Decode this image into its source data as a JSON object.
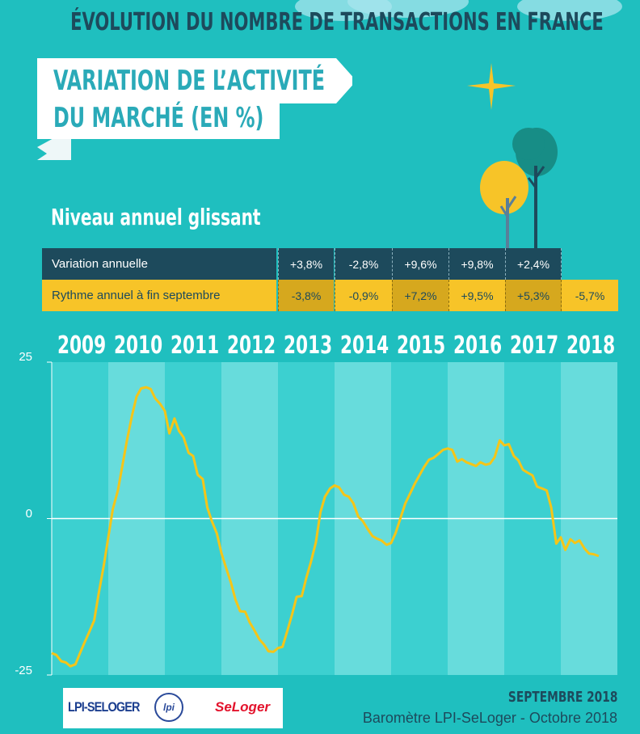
{
  "header": {
    "main_title": "ÉVOLUTION DU NOMBRE DE TRANSACTIONS EN FRANCE",
    "banner_line1": "VARIATION DE L’ACTIVITÉ",
    "banner_line2": "DU MARCHÉ (EN %)"
  },
  "section_title": "Niveau annuel glissant",
  "table": {
    "row1_label": "Variation annuelle",
    "row1_values": [
      "+3,8%",
      "-2,8%",
      "+9,6%",
      "+9,8%",
      "+2,4%"
    ],
    "row2_label": "Rythme annuel à fin septembre",
    "row2_values": [
      "-3,8%",
      "-0,9%",
      "+7,2%",
      "+9,5%",
      "+5,3%",
      "-5,7%"
    ]
  },
  "logos": {
    "lpi_seloger": "LPI-SELOGER",
    "lpi": "lpi",
    "seloger": "SeLoger"
  },
  "footer": {
    "date": "SEPTEMBRE 2018",
    "source": "Baromètre LPI-SeLoger - Octobre 2018"
  },
  "colors": {
    "background": "#1fbfbf",
    "dark_navy": "#1d4a5c",
    "yellow": "#f7c428",
    "line": "#f5c518",
    "band_light": "#67dcdc",
    "band_mid": "#3cd0d0"
  },
  "chart_data": {
    "type": "line",
    "title": "",
    "xlabel": "",
    "ylabel": "",
    "categories": [
      "2009",
      "2010",
      "2011",
      "2012",
      "2013",
      "2014",
      "2015",
      "2016",
      "2017",
      "2018"
    ],
    "ylim": [
      -25,
      25
    ],
    "yticks": [
      25,
      0,
      -25
    ],
    "grid": false,
    "series": [
      {
        "x": [
          2009.0,
          2009.08,
          2009.17,
          2009.25,
          2009.33,
          2009.42,
          2009.5,
          2009.58,
          2009.67,
          2009.75,
          2009.83,
          2009.92,
          2010.0,
          2010.08,
          2010.17,
          2010.25,
          2010.33,
          2010.42,
          2010.5,
          2010.58,
          2010.67,
          2010.75,
          2010.83,
          2010.92,
          2011.0,
          2011.08,
          2011.17,
          2011.25,
          2011.33,
          2011.42,
          2011.5,
          2011.58,
          2011.67,
          2011.75,
          2011.83,
          2011.92,
          2012.0,
          2012.08,
          2012.17,
          2012.25,
          2012.33,
          2012.42,
          2012.5,
          2012.58,
          2012.67,
          2012.75,
          2012.83,
          2012.92,
          2013.0,
          2013.08,
          2013.17,
          2013.25,
          2013.33,
          2013.42,
          2013.5,
          2013.58,
          2013.67,
          2013.75,
          2013.83,
          2013.92,
          2014.0,
          2014.08,
          2014.17,
          2014.25,
          2014.33,
          2014.42,
          2014.5,
          2014.58,
          2014.67,
          2014.75,
          2014.83,
          2014.92,
          2015.0,
          2015.08,
          2015.17,
          2015.25,
          2015.33,
          2015.42,
          2015.5,
          2015.58,
          2015.67,
          2015.75,
          2015.83,
          2015.92,
          2016.0,
          2016.08,
          2016.17,
          2016.25,
          2016.33,
          2016.42,
          2016.5,
          2016.58,
          2016.67,
          2016.75,
          2016.83,
          2016.92,
          2017.0,
          2017.08,
          2017.17,
          2017.25,
          2017.33,
          2017.42,
          2017.5,
          2017.58,
          2017.67,
          2017.75,
          2017.83,
          2017.92,
          2018.0,
          2018.08,
          2018.17,
          2018.25,
          2018.33,
          2018.42,
          2018.5,
          2018.58,
          2018.67
        ],
        "values": [
          -21.5,
          -21.8,
          -22.8,
          -23.0,
          -23.6,
          -23.3,
          -21.5,
          -19.8,
          -18.0,
          -16.3,
          -12.0,
          -7.5,
          -3.0,
          1.5,
          4.5,
          8.5,
          12.5,
          16.5,
          19.5,
          20.8,
          21.0,
          20.7,
          19.2,
          18.3,
          17.2,
          13.6,
          16.0,
          14.0,
          13.0,
          10.5,
          10.0,
          7.0,
          6.3,
          1.8,
          -0.4,
          -2.4,
          -5.5,
          -7.8,
          -10.3,
          -13.0,
          -14.8,
          -14.9,
          -16.6,
          -17.8,
          -19.3,
          -20.1,
          -21.2,
          -21.3,
          -20.7,
          -20.5,
          -17.8,
          -15.3,
          -12.5,
          -12.4,
          -9.5,
          -7.0,
          -3.8,
          1.0,
          3.5,
          4.8,
          5.3,
          5.0,
          3.8,
          3.5,
          2.5,
          0.3,
          -0.4,
          -1.6,
          -2.8,
          -3.2,
          -3.5,
          -4.2,
          -3.9,
          -2.3,
          0.2,
          2.4,
          3.9,
          5.6,
          6.9,
          8.2,
          9.4,
          9.7,
          10.3,
          11.0,
          11.2,
          11.0,
          9.1,
          9.5,
          9.0,
          8.7,
          8.4,
          9.0,
          8.6,
          8.8,
          9.8,
          12.5,
          11.7,
          11.9,
          10.0,
          9.3,
          7.8,
          7.3,
          6.9,
          5.1,
          4.8,
          4.5,
          1.8,
          -4.0,
          -3.0,
          -5.0,
          -3.3,
          -3.9,
          -3.5,
          -4.8,
          -5.6,
          -5.7,
          -6.0
        ]
      }
    ]
  }
}
